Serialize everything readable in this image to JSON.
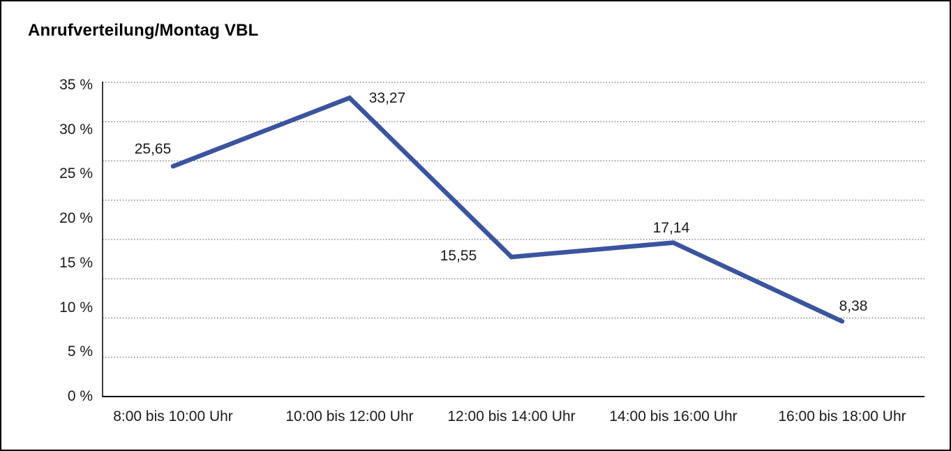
{
  "window": {
    "title": "Anrufverteilung/Montag VBL"
  },
  "chart_data": {
    "type": "line",
    "title": "Anrufverteilung/Montag VBL",
    "categories": [
      "8:00 bis 10:00 Uhr",
      "10:00 bis 12:00 Uhr",
      "12:00 bis 14:00 Uhr",
      "14:00 bis 16:00 Uhr",
      "16:00 bis 18:00 Uhr"
    ],
    "series": [
      {
        "name": "Anrufverteilung Montag VBL",
        "values": [
          25.65,
          33.27,
          15.55,
          17.14,
          8.38
        ],
        "data_labels": [
          "25,65",
          "33,27",
          "15,55",
          "17,14",
          "8,38"
        ]
      }
    ],
    "xlabel": "",
    "ylabel": "",
    "y_tick_labels": [
      "35 %",
      "30 %",
      "25 %",
      "20 %",
      "15 %",
      "10 %",
      "5 %",
      "0 %"
    ],
    "ylim": [
      0,
      35
    ],
    "grid": "horizontal-dotted",
    "gridline_intervals": 8,
    "legend_position": "none",
    "colors": {
      "line": "#3A549E",
      "text": "#1a1a1a",
      "gridline": "#4a4a4a",
      "axis": "#000000",
      "background": "#ffffff",
      "frame_border": "#000000"
    }
  }
}
